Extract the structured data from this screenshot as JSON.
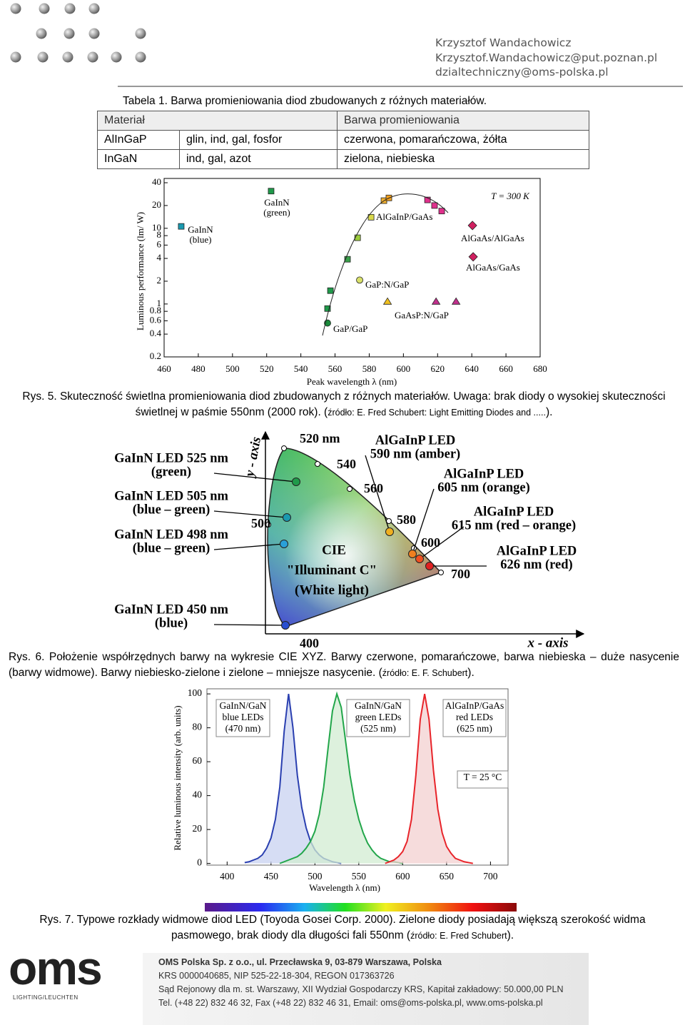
{
  "header": {
    "lines": [
      "Krzysztof Wandachowicz",
      "Krzysztof.Wandachowicz@put.poznan.pl",
      "dzialtechniczny@oms-polska.pl"
    ]
  },
  "table": {
    "caption": "Tabela 1. Barwa promieniowania diod zbudowanych z różnych materiałów.",
    "header": [
      "Materiał",
      "Barwa promieniowania"
    ],
    "rows": [
      [
        "AlInGaP",
        "glin, ind, gal, fosfor",
        "czerwona, pomarańczowa, żółta"
      ],
      [
        "InGaN",
        "ind, gal, azot",
        "zielona, niebieska"
      ]
    ]
  },
  "chart_data": [
    {
      "type": "scatter",
      "ylabel": "Luminous performance (lm/ W)",
      "xlabel": "Peak wavelength λ (nm)",
      "xlim": [
        460,
        680
      ],
      "xticks": [
        460,
        480,
        500,
        520,
        540,
        560,
        580,
        600,
        620,
        640,
        660,
        680
      ],
      "ylim": [
        0.2,
        40
      ],
      "yticks": [
        0.2,
        0.4,
        0.6,
        0.8,
        1,
        2,
        4,
        6,
        8,
        10,
        20,
        40
      ],
      "yscale": "log",
      "annotations": [
        "T = 300 K"
      ],
      "series": [
        {
          "name": "GaInN (blue)",
          "marker": "square",
          "color": "#1a9ab0",
          "x": [
            470
          ],
          "values": [
            10.6
          ]
        },
        {
          "name": "GaInN (green)",
          "marker": "square",
          "colors": [
            "#1f9a4a",
            "#1f9a4a",
            "#1f9a4a",
            "#3aa04a",
            "#9ccc3c"
          ],
          "x": [
            522.6,
            555.6,
            557.3,
            567.3,
            573.2
          ],
          "values": [
            31,
            0.87,
            1.5,
            3.9,
            7.5
          ]
        },
        {
          "name": "AlGaInP/GaAs",
          "marker": "square",
          "colors": [
            "#d8d84a",
            "#f0b030",
            "#f0a020",
            "#e0308c",
            "#e0308c",
            "#e0308c"
          ],
          "x": [
            581.1,
            588.6,
            591.5,
            614.1,
            618.2,
            622.4
          ],
          "values": [
            14,
            23.2,
            25.2,
            23.7,
            20,
            16.9
          ]
        },
        {
          "name": "GaP:N/GaP",
          "marker": "circle",
          "color": "#d8e06a",
          "x": [
            574.4
          ],
          "values": [
            2.07
          ]
        },
        {
          "name": "GaP/GaP",
          "marker": "circle",
          "color": "#1a8a3a",
          "x": [
            555.6
          ],
          "values": [
            0.56
          ]
        },
        {
          "name": "GaAsP:N/GaP",
          "marker": "triangle",
          "colors": [
            "#f0c020",
            "#c0308c",
            "#c0308c"
          ],
          "x": [
            590.7,
            619.1,
            630.8
          ],
          "values": [
            1.08,
            1.08,
            1.08
          ]
        },
        {
          "name": "AlGaAs/AlGaAs",
          "marker": "diamond",
          "color": "#d02060",
          "x": [
            640.4
          ],
          "values": [
            10.9
          ]
        },
        {
          "name": "AlGaAs/GaAs",
          "marker": "diamond",
          "color": "#d02060",
          "x": [
            640.8
          ],
          "values": [
            4.2
          ]
        }
      ]
    },
    {
      "type": "line",
      "ylabel": "Relative luminous intensity (arb. units)",
      "xlabel": "Wavelength λ (nm)",
      "xlim": [
        377,
        720
      ],
      "xticks": [
        400,
        450,
        500,
        550,
        600,
        650,
        700
      ],
      "ylim": [
        -1,
        103
      ],
      "yticks": [
        0,
        20,
        40,
        60,
        80,
        100
      ],
      "annotations": [
        [
          "GaInN/GaN",
          "blue LEDs",
          "(470 nm)"
        ],
        [
          "GaInN/GaN",
          "green LEDs",
          "(525 nm)"
        ],
        [
          "AlGaInP/GaAs",
          "red LEDs",
          "(625 nm)"
        ],
        [
          "T = 25 °C"
        ]
      ],
      "series": [
        {
          "color": "#2a3fb0",
          "fill": "#c8d2f0",
          "x": [
            420,
            425,
            430,
            435,
            440,
            445,
            450,
            455,
            460,
            465,
            470,
            475,
            480,
            485,
            490,
            495,
            500,
            505,
            510,
            515,
            520,
            525,
            530
          ],
          "values": [
            0.5,
            1,
            2,
            3,
            5,
            9,
            15,
            26,
            45,
            78,
            100,
            80,
            52,
            33,
            21,
            13,
            8,
            5,
            3,
            2,
            1,
            0.5,
            0
          ]
        },
        {
          "color": "#22a64a",
          "fill": "#d2ecd2",
          "x": [
            460,
            465,
            470,
            475,
            480,
            485,
            490,
            495,
            500,
            505,
            510,
            515,
            520,
            525,
            530,
            535,
            540,
            545,
            550,
            555,
            560,
            565,
            570,
            575,
            580,
            585,
            590,
            595,
            600
          ],
          "values": [
            0,
            1,
            2,
            3,
            4,
            6,
            9,
            13,
            19,
            29,
            45,
            68,
            90,
            100,
            92,
            72,
            52,
            37,
            26,
            18,
            12,
            8,
            5,
            3,
            2,
            1,
            1,
            0.5,
            0
          ]
        },
        {
          "color": "#e8242a",
          "fill": "#f3d0d0",
          "x": [
            580,
            585,
            590,
            595,
            600,
            605,
            610,
            615,
            620,
            625,
            630,
            635,
            640,
            645,
            650,
            655,
            660,
            665,
            670,
            675,
            680
          ],
          "values": [
            0,
            1,
            2,
            4,
            7,
            13,
            26,
            52,
            85,
            100,
            85,
            55,
            32,
            18,
            10,
            6,
            3,
            2,
            1,
            0.5,
            0
          ]
        }
      ]
    }
  ],
  "cie": {
    "y_axis": "y - axis",
    "x_axis": "x - axis",
    "wavelengths": [
      "520 nm",
      "540",
      "560",
      "580",
      "600",
      "700",
      "500",
      "400"
    ],
    "leds": [
      [
        "GaInN  LED 525 nm",
        "(green)"
      ],
      [
        "GaInN  LED 505 nm",
        "(blue – green)"
      ],
      [
        "GaInN  LED 498 nm",
        "(blue – green)"
      ],
      [
        "GaInN  LED 450 nm",
        "(blue)"
      ],
      [
        "AlGaInP LED",
        "590 nm (amber)"
      ],
      [
        "AlGaInP LED",
        "605 nm (orange)"
      ],
      [
        "AlGaInP LED",
        "615 nm (red – orange)"
      ],
      [
        "AlGaInP LED",
        "626 nm (red)"
      ]
    ],
    "center": [
      "CIE",
      "\"Illuminant C\"",
      "(White light)"
    ]
  },
  "captions": [
    {
      "parts": [
        {
          "text": "Rys. 5. Skuteczność świetlna promieniowania diod zbudowanych z różnych materiałów. Uwaga: brak diody o wysokiej skuteczności świetlnej w paśmie 550nm (2000 rok). ("
        },
        {
          "text": "źródło: E. Fred Schubert: Light Emitting Diodes and .....",
          "small": true
        },
        {
          "text": ")."
        }
      ]
    },
    {
      "parts": [
        {
          "text": "Rys. 6. Położenie współrzędnych barwy na wykresie CIE XYZ. Barwy czerwone, pomarańczowe, barwa niebieska – duże nasycenie (barwy widmowe). Barwy niebiesko-zielone i zielone – mniejsze nasycenie. ("
        },
        {
          "text": "źródło: E. F. Schubert",
          "small": true
        },
        {
          "text": ")."
        }
      ]
    },
    {
      "parts": [
        {
          "text": "Rys. 7. Typowe rozkłady widmowe diod LED (Toyoda Gosei Corp. 2000). Zielone diody posiadają większą szerokość widma pasmowego, brak diody dla długości fali 550nm ("
        },
        {
          "text": "źródło: E. Fred Schubert",
          "small": true
        },
        {
          "text": ")."
        }
      ]
    }
  ],
  "footer": {
    "logo": "oms",
    "tagline": "LIGHTING/LEUCHTEN",
    "lines": [
      "OMS Polska Sp. z o.o., ul. Przecławska 9, 03-879 Warszawa, Polska",
      "KRS 0000040685, NIP 525-22-18-304, REGON 017363726",
      "Sąd Rejonowy dla m. st. Warszawy, XII Wydział Gospodarczy KRS, Kapitał zakładowy: 50.000,00 PLN",
      "Tel. (+48 22) 832 46 32, Fax (+48 22) 832 46 31, Email: oms@oms-polska.pl, www.oms-polska.pl"
    ]
  }
}
